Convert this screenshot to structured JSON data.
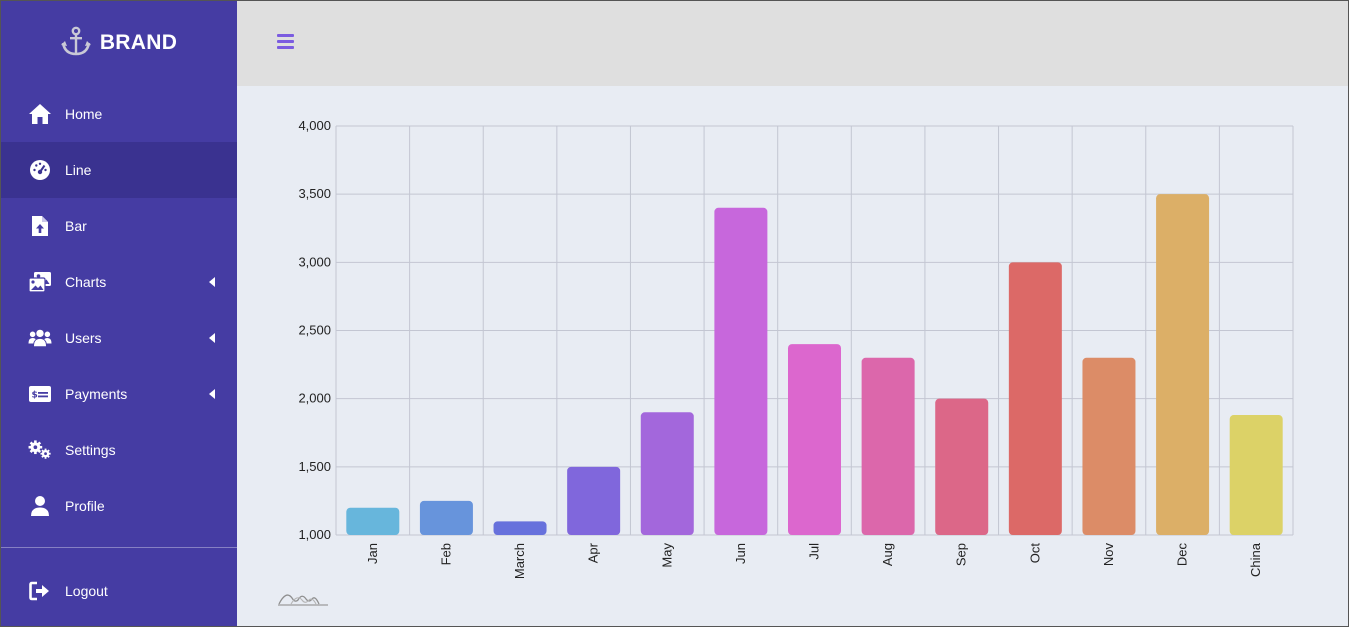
{
  "brand": {
    "name": "BRAND",
    "icon": "anchor-icon"
  },
  "sidebar": {
    "items": [
      {
        "label": "Home",
        "icon": "home-icon",
        "active": false,
        "has_submenu": false
      },
      {
        "label": "Line",
        "icon": "dashboard-icon",
        "active": true,
        "has_submenu": false
      },
      {
        "label": "Bar",
        "icon": "file-upload-icon",
        "active": false,
        "has_submenu": false
      },
      {
        "label": "Charts",
        "icon": "images-icon",
        "active": false,
        "has_submenu": true
      },
      {
        "label": "Users",
        "icon": "users-icon",
        "active": false,
        "has_submenu": true
      },
      {
        "label": "Payments",
        "icon": "money-check-icon",
        "active": false,
        "has_submenu": true
      },
      {
        "label": "Settings",
        "icon": "cogs-icon",
        "active": false,
        "has_submenu": false
      },
      {
        "label": "Profile",
        "icon": "user-icon",
        "active": false,
        "has_submenu": false
      }
    ],
    "logout": {
      "label": "Logout",
      "icon": "sign-out-icon"
    }
  },
  "topbar": {
    "menu_icon": "hamburger-icon"
  },
  "colors": {
    "sidebar_bg": "#453ca3",
    "sidebar_active": "#3a3290",
    "topbar_bg": "#dfdfdf",
    "content_bg": "#e8ecf3",
    "accent": "#7b5ce0"
  },
  "chart_data": {
    "type": "bar",
    "title": "",
    "xlabel": "",
    "ylabel": "",
    "categories": [
      "Jan",
      "Feb",
      "March",
      "Apr",
      "May",
      "Jun",
      "Jul",
      "Aug",
      "Sep",
      "Oct",
      "Nov",
      "Dec",
      "China"
    ],
    "values": [
      1200,
      1250,
      1100,
      1500,
      1900,
      3400,
      2400,
      2300,
      2000,
      3000,
      2300,
      3500,
      1880
    ],
    "colors": [
      "#67b6dc",
      "#6794dc",
      "#6771dc",
      "#8067dc",
      "#a367dc",
      "#c767dc",
      "#dc67ce",
      "#dc67ab",
      "#dc6788",
      "#dc6967",
      "#dc8c67",
      "#dcaf67",
      "#dcd267"
    ],
    "ylim": [
      1000,
      4000
    ],
    "yticks": [
      "1,000",
      "1,500",
      "2,000",
      "2,500",
      "3,000",
      "3,500",
      "4,000"
    ],
    "grid": true,
    "legend": "none"
  }
}
